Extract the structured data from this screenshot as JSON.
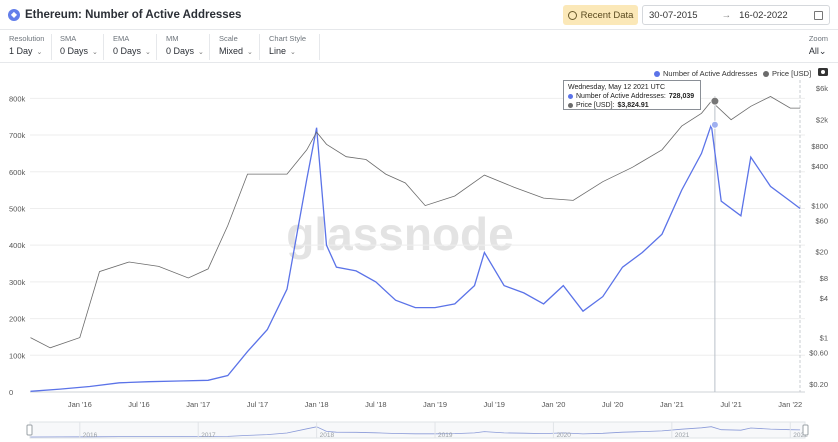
{
  "header": {
    "icon_glyph": "◆",
    "title": "Ethereum: Number of Active Addresses",
    "recent_button": "Recent Data",
    "date_from": "30-07-2015",
    "date_sep": "→",
    "date_to": "16-02-2022"
  },
  "controls": [
    {
      "label": "Resolution",
      "value": "1 Day"
    },
    {
      "label": "SMA",
      "value": "0 Days"
    },
    {
      "label": "EMA",
      "value": "0 Days"
    },
    {
      "label": "MM",
      "value": "0 Days"
    },
    {
      "label": "Scale",
      "value": "Mixed"
    },
    {
      "label": "Chart Style",
      "value": "Line"
    }
  ],
  "zoom": {
    "label": "Zoom",
    "value": "All"
  },
  "legend": {
    "active": "Number of Active Addresses",
    "price": "Price [USD]"
  },
  "tooltip": {
    "date": "Wednesday, May 12 2021 UTC",
    "active_label": "Number of Active Addresses:",
    "active_value": "728,039",
    "price_label": "Price [USD]:",
    "price_value": "$3,824.91"
  },
  "watermark": "glassnode",
  "colors": {
    "active": "#5b73e8",
    "price": "#6b6b6b",
    "accent": "#fbe8b8"
  },
  "chart_data": {
    "type": "line",
    "title": "Ethereum: Number of Active Addresses",
    "x_tick_labels": [
      "Jan '16",
      "Jul '16",
      "Jan '17",
      "Jul '17",
      "Jan '18",
      "Jul '18",
      "Jan '19",
      "Jul '19",
      "Jan '20",
      "Jul '20",
      "Jan '21",
      "Jul '21",
      "Jan '22"
    ],
    "left_axis": {
      "ticks": [
        "0",
        "100k",
        "200k",
        "300k",
        "400k",
        "500k",
        "600k",
        "700k",
        "800k"
      ],
      "ylim": [
        0,
        850000
      ]
    },
    "right_axis": {
      "scale": "log",
      "ticks": [
        "$0.20",
        "$0.60",
        "$1",
        "$4",
        "$8",
        "$20",
        "$60",
        "$100",
        "$400",
        "$800",
        "$2k",
        "$6k"
      ]
    },
    "series": [
      {
        "name": "Number of Active Addresses",
        "axis": "left",
        "x": [
          "2015-08",
          "2015-11",
          "2016-02",
          "2016-05",
          "2016-08",
          "2016-11",
          "2017-02",
          "2017-04",
          "2017-06",
          "2017-08",
          "2017-10",
          "2017-12",
          "2018-01",
          "2018-02",
          "2018-03",
          "2018-05",
          "2018-07",
          "2018-09",
          "2018-11",
          "2019-01",
          "2019-03",
          "2019-05",
          "2019-06",
          "2019-08",
          "2019-10",
          "2019-12",
          "2020-02",
          "2020-04",
          "2020-06",
          "2020-08",
          "2020-10",
          "2020-12",
          "2021-02",
          "2021-04",
          "2021-05",
          "2021-06",
          "2021-08",
          "2021-09",
          "2021-11",
          "2022-01",
          "2022-02"
        ],
        "values": [
          2000,
          8000,
          15000,
          25000,
          28000,
          30000,
          32000,
          45000,
          110000,
          170000,
          280000,
          580000,
          720000,
          400000,
          340000,
          330000,
          300000,
          250000,
          230000,
          230000,
          240000,
          290000,
          380000,
          290000,
          270000,
          240000,
          290000,
          220000,
          260000,
          340000,
          380000,
          430000,
          550000,
          650000,
          728039,
          520000,
          480000,
          640000,
          560000,
          520000,
          500000
        ]
      },
      {
        "name": "Price [USD]",
        "axis": "right",
        "x": [
          "2015-08",
          "2015-10",
          "2016-01",
          "2016-03",
          "2016-06",
          "2016-09",
          "2016-12",
          "2017-02",
          "2017-04",
          "2017-06",
          "2017-08",
          "2017-10",
          "2017-12",
          "2018-01",
          "2018-02",
          "2018-04",
          "2018-06",
          "2018-08",
          "2018-10",
          "2018-12",
          "2019-03",
          "2019-06",
          "2019-09",
          "2019-12",
          "2020-03",
          "2020-06",
          "2020-09",
          "2020-12",
          "2021-02",
          "2021-04",
          "2021-05",
          "2021-07",
          "2021-09",
          "2021-11",
          "2022-01",
          "2022-02"
        ],
        "values": [
          1.0,
          0.7,
          1.0,
          10,
          14,
          12,
          8,
          11,
          50,
          300,
          300,
          300,
          700,
          1300,
          850,
          550,
          500,
          300,
          220,
          100,
          140,
          290,
          190,
          130,
          120,
          230,
          380,
          700,
          1600,
          2500,
          3824.91,
          2000,
          3200,
          4500,
          3000,
          3000
        ]
      }
    ],
    "annotation": {
      "date": "2021-05-12",
      "active": 728039,
      "price": 3824.91
    }
  }
}
